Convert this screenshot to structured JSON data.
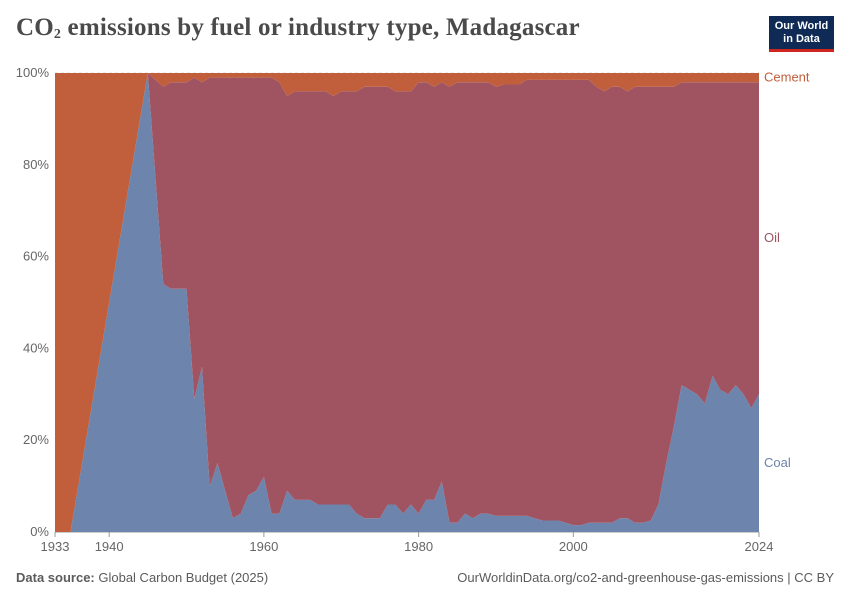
{
  "chart_data": {
    "type": "area",
    "stacked": true,
    "normalized": true,
    "title_main": "CO",
    "title_sub": "2",
    "title_rest": " emissions by fuel or industry type, Madagascar",
    "years": [
      1933,
      1935,
      1945,
      1947,
      1948,
      1950,
      1951,
      1952,
      1953,
      1954,
      1955,
      1956,
      1957,
      1958,
      1959,
      1960,
      1961,
      1962,
      1963,
      1964,
      1965,
      1966,
      1967,
      1968,
      1969,
      1970,
      1971,
      1972,
      1973,
      1974,
      1975,
      1976,
      1977,
      1978,
      1979,
      1980,
      1981,
      1982,
      1983,
      1984,
      1985,
      1986,
      1987,
      1988,
      1989,
      1990,
      1991,
      1992,
      1993,
      1994,
      1995,
      1996,
      1997,
      1998,
      1999,
      2000,
      2001,
      2002,
      2003,
      2004,
      2005,
      2006,
      2007,
      2008,
      2009,
      2010,
      2011,
      2012,
      2013,
      2014,
      2015,
      2016,
      2017,
      2018,
      2019,
      2020,
      2021,
      2022,
      2023,
      2024
    ],
    "series": [
      {
        "name": "Coal",
        "values": [
          0,
          0,
          100,
          54,
          53,
          53,
          29,
          36,
          10,
          15,
          9,
          3,
          4,
          8,
          9,
          12,
          4,
          4,
          9,
          7,
          7,
          7,
          6,
          6,
          6,
          6,
          6,
          4,
          3,
          3,
          3,
          6,
          6,
          4,
          6,
          4,
          7,
          7,
          11,
          2,
          2,
          4,
          3,
          4,
          4,
          3.5,
          3.5,
          3.5,
          3.5,
          3.5,
          3,
          2.5,
          2.5,
          2.5,
          2,
          1.5,
          1.5,
          2,
          2,
          2,
          2,
          3,
          3,
          2,
          2,
          2.5,
          6,
          15,
          23,
          32,
          31,
          30,
          28,
          34,
          31,
          30,
          32,
          30,
          27,
          30
        ]
      },
      {
        "name": "Oil",
        "values": [
          0,
          0,
          0,
          43,
          45,
          45,
          70,
          62,
          89,
          84,
          90,
          96,
          95,
          91,
          90,
          87,
          95,
          94,
          86,
          89,
          89,
          89,
          90,
          90,
          89,
          90,
          90,
          92,
          94,
          94,
          94,
          91,
          90,
          92,
          90,
          94,
          91,
          90,
          87,
          95,
          96,
          94,
          95,
          94,
          94,
          93.5,
          94,
          94,
          94,
          95,
          95.5,
          96,
          96,
          96,
          96.5,
          97,
          97,
          96.5,
          95,
          94,
          95,
          94,
          93,
          95,
          95,
          94.5,
          91,
          82,
          74,
          66,
          67,
          68,
          70,
          64,
          67,
          68,
          66,
          68,
          71,
          68
        ]
      },
      {
        "name": "Cement",
        "values": [
          100,
          100,
          0,
          3,
          2,
          2,
          1,
          2,
          1,
          1,
          1,
          1,
          1,
          1,
          1,
          1,
          1,
          2,
          5,
          4,
          4,
          4,
          4,
          4,
          5,
          4,
          4,
          4,
          3,
          3,
          3,
          3,
          4,
          4,
          4,
          2,
          2,
          3,
          2,
          3,
          2,
          2,
          2,
          2,
          2,
          3,
          2.5,
          2.5,
          2.5,
          1.5,
          1.5,
          1.5,
          1.5,
          1.5,
          1.5,
          1.5,
          1.5,
          1.5,
          3,
          4,
          3,
          3,
          4,
          3,
          3,
          3,
          3,
          3,
          3,
          2,
          2,
          2,
          2,
          2,
          2,
          2,
          2,
          2,
          2,
          2
        ]
      }
    ],
    "colors": {
      "Coal": "#6d84ac",
      "Oil": "#a05462",
      "Cement": "#c15e3b"
    },
    "xlim": [
      1933,
      2024
    ],
    "ylim": [
      0,
      100
    ],
    "y_ticks": [
      "0%",
      "20%",
      "40%",
      "60%",
      "80%",
      "100%"
    ],
    "x_ticks": [
      "1933",
      "1940",
      "1960",
      "1980",
      "2000",
      "2024"
    ],
    "legend": [
      "Cement",
      "Oil",
      "Coal"
    ]
  },
  "logo": {
    "line1": "Our World",
    "line2": "in Data"
  },
  "footer": {
    "source_label": "Data source:",
    "source_text": " Global Carbon Budget (2025)",
    "url_text": "OurWorldinData.org/co2-and-greenhouse-gas-emissions | CC BY"
  }
}
